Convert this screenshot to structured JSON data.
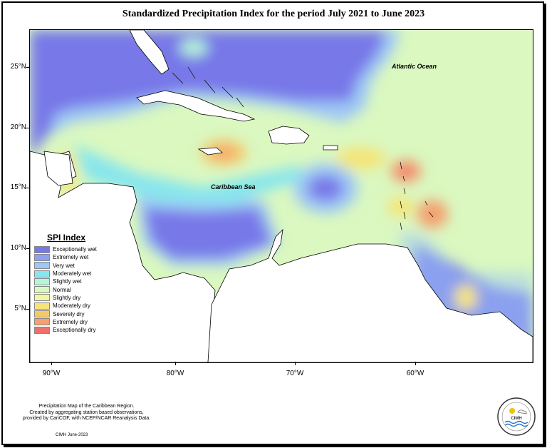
{
  "title": "Standardized Precipitation Index for the period July 2021 to June 2023",
  "axes": {
    "lat_labels": [
      "25°N",
      "20°N",
      "15°N",
      "10°N",
      "5°N"
    ],
    "lon_labels": [
      "90°W",
      "80°W",
      "70°W",
      "60°W"
    ]
  },
  "map_labels": {
    "atlantic": "Atlantic Ocean",
    "caribbean": "Caribbean Sea"
  },
  "legend": {
    "title": "SPI Index",
    "items": [
      {
        "label": "Exceptionally wet",
        "color": "#7878e8"
      },
      {
        "label": "Extremely wet",
        "color": "#8ea2f0"
      },
      {
        "label": "Very wet",
        "color": "#9ec8f6"
      },
      {
        "label": "Moderately wet",
        "color": "#88e6ec"
      },
      {
        "label": "Slightly wet",
        "color": "#b8f4d8"
      },
      {
        "label": "Normal",
        "color": "#daf8c0"
      },
      {
        "label": "Slightly dry",
        "color": "#f2f6a4"
      },
      {
        "label": "Moderately dry",
        "color": "#f6e476"
      },
      {
        "label": "Severely dry",
        "color": "#f6c86a"
      },
      {
        "label": "Extremely dry",
        "color": "#f4a070"
      },
      {
        "label": "Exceptionally dry",
        "color": "#ee7070"
      }
    ]
  },
  "footer": {
    "line1": "Precipitation Map of the Caribbean Region.",
    "line2": "Created by aggregating station based observations,",
    "line3": "provided by CariCOF, with NCEP/NCAR Reanalysis Data.",
    "credit": "CIMH June-2023"
  },
  "logo": {
    "text": "CIMH"
  }
}
